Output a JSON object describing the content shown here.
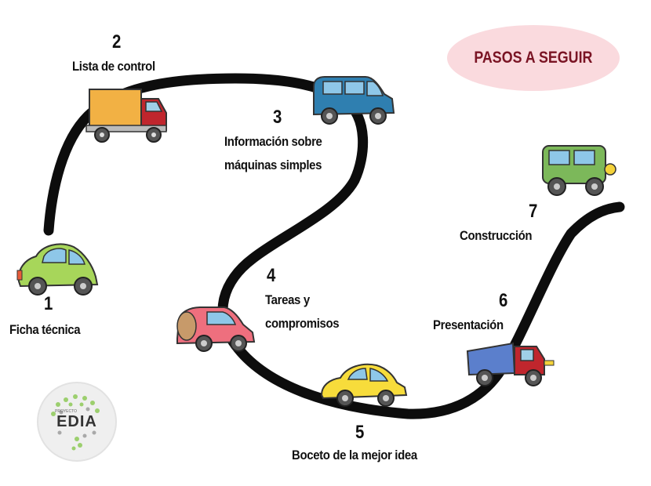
{
  "title": "PASOS A SEGUIR",
  "steps": [
    {
      "number": "1",
      "lines": [
        "Ficha técnica"
      ]
    },
    {
      "number": "2",
      "lines": [
        "Lista de control"
      ]
    },
    {
      "number": "3",
      "lines": [
        "Información sobre",
        "máquinas simples"
      ]
    },
    {
      "number": "4",
      "lines": [
        "Tareas y",
        "compromisos"
      ]
    },
    {
      "number": "5",
      "lines": [
        "Boceto de la mejor idea"
      ]
    },
    {
      "number": "6",
      "lines": [
        "Presentación"
      ]
    },
    {
      "number": "7",
      "lines": [
        "Construcción"
      ]
    }
  ],
  "logo": {
    "small_text": "PROYECTO",
    "name": "EDIA"
  },
  "colors": {
    "road": "#0d0d0d",
    "title_badge": "#fadade",
    "title_text": "#7a1424",
    "car_green": "#a7d65a",
    "truck_orange": "#f2b144",
    "van_blue": "#2f7fb0",
    "car_pink": "#ee6f7e",
    "car_yellow": "#f7dc3b",
    "dump_blue": "#5b7fcc",
    "jeep_green": "#7cb85a"
  }
}
